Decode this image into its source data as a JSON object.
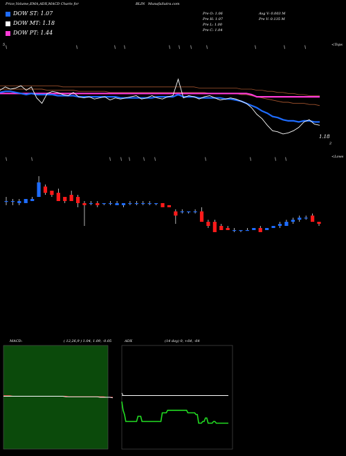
{
  "header": {
    "title": "Price,Volume,EMA,ADX,MACD Charts for",
    "symbol": "BLIN",
    "site": "MunafaSutra.com"
  },
  "legend": [
    {
      "label": "DOW ST: 1.07",
      "color": "#1e6cff"
    },
    {
      "label": "DOW MT: 1.18",
      "color": "#ffffff"
    },
    {
      "label": "DOW PT: 1.44",
      "color": "#ff3bd8"
    }
  ],
  "info": {
    "prev_open": "Pre  O: 1.06",
    "prev_high": "Pre  H: 1.07",
    "prev_low": "Pre  L: 1.00",
    "prev_close": "Pre  C: 1.04",
    "avg_volume": "Avg V: 0.003 M",
    "prev_volume": "Pre  V: 0.135 M"
  },
  "top_panel": {
    "right_top_label": "<Tops",
    "last_price_label": "1.18",
    "axis_tick": "2",
    "left_tick": "5"
  },
  "middle_panel": {
    "right_label": "<Lows"
  },
  "macd": {
    "title": "MACD:",
    "values": "( 12,26,9 ) 1.04,  1.09,  -0.05"
  },
  "adx": {
    "title": "ADX",
    "values": "(14  day) 0,  +64,  -64"
  },
  "colors": {
    "bull": "#1e6cff",
    "bear": "#ff1a1a",
    "ema_fast": "#1e6cff",
    "ema_pt": "#ff3bd8",
    "ema_mid": "#ffffff",
    "ema_long": "#a0522d",
    "macd_bg": "#0b4a0b",
    "adx_bg": "#000000",
    "adx_line": "#22dd22"
  },
  "chart_data": [
    {
      "type": "line",
      "name": "price-ema",
      "series": [
        {
          "values": [
            1.52,
            1.55,
            1.53,
            1.54,
            1.56,
            1.52,
            1.55,
            1.45,
            1.4,
            1.49,
            1.51,
            1.5,
            1.48,
            1.47,
            1.5,
            1.46,
            1.45,
            1.46,
            1.44,
            1.45,
            1.46,
            1.43,
            1.45,
            1.44,
            1.45,
            1.46,
            1.47,
            1.44,
            1.45,
            1.47,
            1.45,
            1.44,
            1.46,
            1.47,
            1.62,
            1.45,
            1.47,
            1.46,
            1.44,
            1.46,
            1.47,
            1.45,
            1.43,
            1.44,
            1.45,
            1.44,
            1.42,
            1.4,
            1.36,
            1.3,
            1.26,
            1.2,
            1.15,
            1.14,
            1.12,
            1.13,
            1.15,
            1.18,
            1.23,
            1.25,
            1.21,
            1.2
          ]
        },
        {
          "values": [
            1.5,
            1.51,
            1.51,
            1.5,
            1.49,
            1.48,
            1.49,
            1.48,
            1.48,
            1.48,
            1.48,
            1.47,
            1.47,
            1.47,
            1.47,
            1.46,
            1.46,
            1.46,
            1.46,
            1.46,
            1.46,
            1.46,
            1.46,
            1.45,
            1.45,
            1.45,
            1.45,
            1.45,
            1.45,
            1.45,
            1.46,
            1.46,
            1.46,
            1.46,
            1.48,
            1.46,
            1.46,
            1.46,
            1.45,
            1.45,
            1.45,
            1.45,
            1.45,
            1.44,
            1.44,
            1.43,
            1.42,
            1.4,
            1.38,
            1.36,
            1.33,
            1.31,
            1.28,
            1.27,
            1.25,
            1.24,
            1.24,
            1.23,
            1.24,
            1.24,
            1.23,
            1.23
          ]
        },
        {
          "values": [
            1.53,
            1.53,
            1.53,
            1.53,
            1.53,
            1.53,
            1.53,
            1.53,
            1.53,
            1.52,
            1.52,
            1.52,
            1.52,
            1.52,
            1.52,
            1.51,
            1.51,
            1.51,
            1.51,
            1.51,
            1.51,
            1.5,
            1.5,
            1.5,
            1.5,
            1.5,
            1.5,
            1.5,
            1.5,
            1.5,
            1.5,
            1.5,
            1.5,
            1.5,
            1.5,
            1.5,
            1.5,
            1.5,
            1.5,
            1.5,
            1.49,
            1.49,
            1.49,
            1.49,
            1.49,
            1.49,
            1.48,
            1.48,
            1.47,
            1.46,
            1.45,
            1.44,
            1.43,
            1.42,
            1.41,
            1.41,
            1.4,
            1.4,
            1.4,
            1.39,
            1.39,
            1.38
          ]
        },
        {
          "values": [
            1.49,
            1.49,
            1.49,
            1.49,
            1.49,
            1.49,
            1.49,
            1.49,
            1.49,
            1.49,
            1.49,
            1.49,
            1.49,
            1.49,
            1.49,
            1.49,
            1.49,
            1.49,
            1.49,
            1.49,
            1.49,
            1.49,
            1.49,
            1.49,
            1.49,
            1.49,
            1.49,
            1.49,
            1.49,
            1.49,
            1.49,
            1.49,
            1.49,
            1.49,
            1.49,
            1.49,
            1.49,
            1.49,
            1.49,
            1.49,
            1.49,
            1.49,
            1.49,
            1.49,
            1.49,
            1.49,
            1.49,
            1.49,
            1.48,
            1.46,
            1.46,
            1.46,
            1.46,
            1.46,
            1.46,
            1.46,
            1.46,
            1.46,
            1.46,
            1.46,
            1.46,
            1.46
          ]
        },
        {
          "values": [
            1.56,
            1.56,
            1.56,
            1.56,
            1.56,
            1.56,
            1.56,
            1.56,
            1.56,
            1.56,
            1.56,
            1.56,
            1.55,
            1.55,
            1.55,
            1.55,
            1.55,
            1.55,
            1.55,
            1.55,
            1.55,
            1.55,
            1.55,
            1.55,
            1.55,
            1.55,
            1.55,
            1.55,
            1.55,
            1.55,
            1.55,
            1.55,
            1.55,
            1.55,
            1.55,
            1.55,
            1.55,
            1.55,
            1.54,
            1.54,
            1.54,
            1.54,
            1.54,
            1.54,
            1.54,
            1.54,
            1.53,
            1.53,
            1.53,
            1.52,
            1.52,
            1.51,
            1.51,
            1.5,
            1.5,
            1.49,
            1.49,
            1.48,
            1.48,
            1.47,
            1.47,
            1.47
          ]
        }
      ],
      "ylim": [
        1.05,
        1.65
      ]
    },
    {
      "type": "candlestick",
      "name": "daily-candles",
      "candles": [
        {
          "o": 1.43,
          "c": 1.43,
          "h": 1.45,
          "l": 1.41
        },
        {
          "o": 1.43,
          "c": 1.43,
          "h": 1.44,
          "l": 1.41
        },
        {
          "o": 1.42,
          "c": 1.43,
          "h": 1.44,
          "l": 1.41
        },
        {
          "o": 1.42,
          "c": 1.44,
          "h": 1.44,
          "l": 1.42
        },
        {
          "o": 1.43,
          "c": 1.44,
          "h": 1.45,
          "l": 1.43
        },
        {
          "o": 1.45,
          "c": 1.52,
          "h": 1.55,
          "l": 1.45
        },
        {
          "o": 1.5,
          "c": 1.47,
          "h": 1.51,
          "l": 1.46
        },
        {
          "o": 1.48,
          "c": 1.46,
          "h": 1.48,
          "l": 1.45
        },
        {
          "o": 1.47,
          "c": 1.43,
          "h": 1.49,
          "l": 1.43
        },
        {
          "o": 1.45,
          "c": 1.43,
          "h": 1.45,
          "l": 1.42
        },
        {
          "o": 1.46,
          "c": 1.43,
          "h": 1.48,
          "l": 1.43
        },
        {
          "o": 1.45,
          "c": 1.42,
          "h": 1.46,
          "l": 1.4
        },
        {
          "o": 1.42,
          "c": 1.41,
          "h": 1.43,
          "l": 1.31
        },
        {
          "o": 1.42,
          "c": 1.42,
          "h": 1.43,
          "l": 1.41
        },
        {
          "o": 1.42,
          "c": 1.41,
          "h": 1.43,
          "l": 1.4
        },
        {
          "o": 1.42,
          "c": 1.42,
          "h": 1.42,
          "l": 1.41
        },
        {
          "o": 1.42,
          "c": 1.42,
          "h": 1.43,
          "l": 1.41
        },
        {
          "o": 1.41,
          "c": 1.42,
          "h": 1.43,
          "l": 1.41
        },
        {
          "o": 1.41,
          "c": 1.42,
          "h": 1.42,
          "l": 1.4
        },
        {
          "o": 1.42,
          "c": 1.42,
          "h": 1.43,
          "l": 1.41
        },
        {
          "o": 1.42,
          "c": 1.42,
          "h": 1.43,
          "l": 1.41
        },
        {
          "o": 1.42,
          "c": 1.42,
          "h": 1.43,
          "l": 1.41
        },
        {
          "o": 1.42,
          "c": 1.42,
          "h": 1.43,
          "l": 1.41
        },
        {
          "o": 1.42,
          "c": 1.42,
          "h": 1.42,
          "l": 1.41
        },
        {
          "o": 1.42,
          "c": 1.4,
          "h": 1.42,
          "l": 1.4
        },
        {
          "o": 1.41,
          "c": 1.4,
          "h": 1.41,
          "l": 1.4
        },
        {
          "o": 1.38,
          "c": 1.36,
          "h": 1.39,
          "l": 1.32
        },
        {
          "o": 1.38,
          "c": 1.38,
          "h": 1.39,
          "l": 1.37
        },
        {
          "o": 1.38,
          "c": 1.38,
          "h": 1.38,
          "l": 1.37
        },
        {
          "o": 1.38,
          "c": 1.38,
          "h": 1.39,
          "l": 1.37
        },
        {
          "o": 1.38,
          "c": 1.33,
          "h": 1.4,
          "l": 1.33
        },
        {
          "o": 1.33,
          "c": 1.31,
          "h": 1.34,
          "l": 1.3
        },
        {
          "o": 1.33,
          "c": 1.28,
          "h": 1.34,
          "l": 1.28
        },
        {
          "o": 1.31,
          "c": 1.29,
          "h": 1.32,
          "l": 1.29
        },
        {
          "o": 1.3,
          "c": 1.29,
          "h": 1.31,
          "l": 1.29
        },
        {
          "o": 1.29,
          "c": 1.29,
          "h": 1.3,
          "l": 1.28
        },
        {
          "o": 1.29,
          "c": 1.29,
          "h": 1.29,
          "l": 1.28
        },
        {
          "o": 1.29,
          "c": 1.29,
          "h": 1.3,
          "l": 1.29
        },
        {
          "o": 1.29,
          "c": 1.3,
          "h": 1.3,
          "l": 1.29
        },
        {
          "o": 1.3,
          "c": 1.28,
          "h": 1.31,
          "l": 1.28
        },
        {
          "o": 1.29,
          "c": 1.3,
          "h": 1.3,
          "l": 1.29
        },
        {
          "o": 1.3,
          "c": 1.31,
          "h": 1.31,
          "l": 1.3
        },
        {
          "o": 1.31,
          "c": 1.32,
          "h": 1.33,
          "l": 1.3
        },
        {
          "o": 1.31,
          "c": 1.33,
          "h": 1.34,
          "l": 1.31
        },
        {
          "o": 1.33,
          "c": 1.34,
          "h": 1.35,
          "l": 1.32
        },
        {
          "o": 1.34,
          "c": 1.35,
          "h": 1.36,
          "l": 1.33
        },
        {
          "o": 1.35,
          "c": 1.35,
          "h": 1.36,
          "l": 1.34
        },
        {
          "o": 1.36,
          "c": 1.33,
          "h": 1.37,
          "l": 1.33
        },
        {
          "o": 1.33,
          "c": 1.32,
          "h": 1.33,
          "l": 1.31
        }
      ],
      "ylim": [
        1.2,
        1.6
      ]
    },
    {
      "type": "line",
      "name": "macd",
      "series": [
        {
          "values": [
            0.02,
            0.02,
            0.02,
            0.02,
            0.02,
            0.02,
            0.02,
            0.02,
            0.02,
            0.02,
            0.02,
            0.02,
            0.02,
            0.02,
            0.02,
            0.02,
            0.02,
            0.02,
            0.02,
            0.02,
            0.01,
            0.01,
            0.01,
            0.01,
            0.01,
            0.01,
            0.01,
            0.01,
            0.01,
            0.01,
            0.01,
            0.0,
            0.0,
            0.0,
            0.0,
            -0.01
          ]
        },
        {
          "values": [
            0.03,
            0.03,
            0.03,
            0.02,
            0.02,
            0.02,
            0.02,
            0.02,
            0.02,
            0.02,
            0.02,
            0.02,
            0.02,
            0.02,
            0.02,
            0.02,
            0.02,
            0.02,
            0.02,
            0.02,
            0.02,
            0.01,
            0.01,
            0.01,
            0.01,
            0.01,
            0.01,
            0.01,
            0.01,
            0.01,
            0.01,
            0.01,
            0.01,
            0.0,
            0.0,
            0.0
          ]
        }
      ],
      "ylim": [
        -1.0,
        1.0
      ]
    },
    {
      "type": "line",
      "name": "adx",
      "series": [
        {
          "values": [
            5,
            2,
            2,
            2,
            2,
            2,
            2,
            2,
            2,
            2,
            2,
            2,
            2,
            2,
            2,
            2,
            2,
            2,
            2,
            2,
            2,
            2,
            2,
            2,
            2,
            2,
            2,
            2,
            2,
            2,
            2,
            2,
            2,
            2,
            2,
            2,
            2,
            2,
            2,
            2,
            2,
            2,
            2,
            2,
            2,
            2,
            2,
            2,
            2,
            2,
            2,
            2,
            2,
            2,
            2,
            2,
            2,
            2,
            2,
            2,
            2,
            2,
            2,
            2,
            2,
            2,
            2,
            2,
            2,
            2,
            2,
            2,
            2,
            2,
            2,
            2,
            2,
            2,
            2,
            2
          ]
        },
        {
          "values": [
            2,
            2,
            2,
            2,
            2,
            2,
            2,
            2,
            2,
            2,
            2,
            2,
            2,
            2,
            2,
            2,
            2,
            2,
            2,
            2,
            2,
            2,
            2,
            2,
            2,
            2,
            2,
            2,
            2,
            2,
            2,
            2,
            2,
            2,
            2,
            2,
            2,
            2,
            2,
            2,
            2,
            2,
            2,
            2,
            2,
            2,
            2,
            2,
            2,
            2,
            2,
            2,
            2,
            2,
            2,
            2,
            2,
            2,
            2,
            2,
            2,
            2,
            2,
            2,
            2,
            2,
            2,
            2,
            2,
            2,
            2,
            2,
            2,
            2,
            2,
            2,
            2,
            2,
            2,
            2
          ]
        },
        {
          "values": [
            -5,
            -15,
            -20,
            -28,
            -28,
            -28,
            -28,
            -28,
            -28,
            -28,
            -28,
            -28,
            -22,
            -22,
            -22,
            -28,
            -28,
            -28,
            -28,
            -28,
            -28,
            -28,
            -28,
            -28,
            -28,
            -28,
            -28,
            -28,
            -28,
            -28,
            -18,
            -18,
            -18,
            -18,
            -15,
            -15,
            -15,
            -15,
            -15,
            -15,
            -15,
            -15,
            -15,
            -15,
            -15,
            -15,
            -15,
            -15,
            -15,
            -18,
            -18,
            -18,
            -18,
            -18,
            -18,
            -20,
            -20,
            -30,
            -30,
            -30,
            -28,
            -28,
            -24,
            -24,
            -30,
            -30,
            -30,
            -30,
            -28,
            -28,
            -30,
            -30,
            -30,
            -30,
            -30,
            -30,
            -30,
            -30,
            -30,
            -30
          ]
        }
      ],
      "ylim": [
        -60,
        60
      ]
    }
  ]
}
